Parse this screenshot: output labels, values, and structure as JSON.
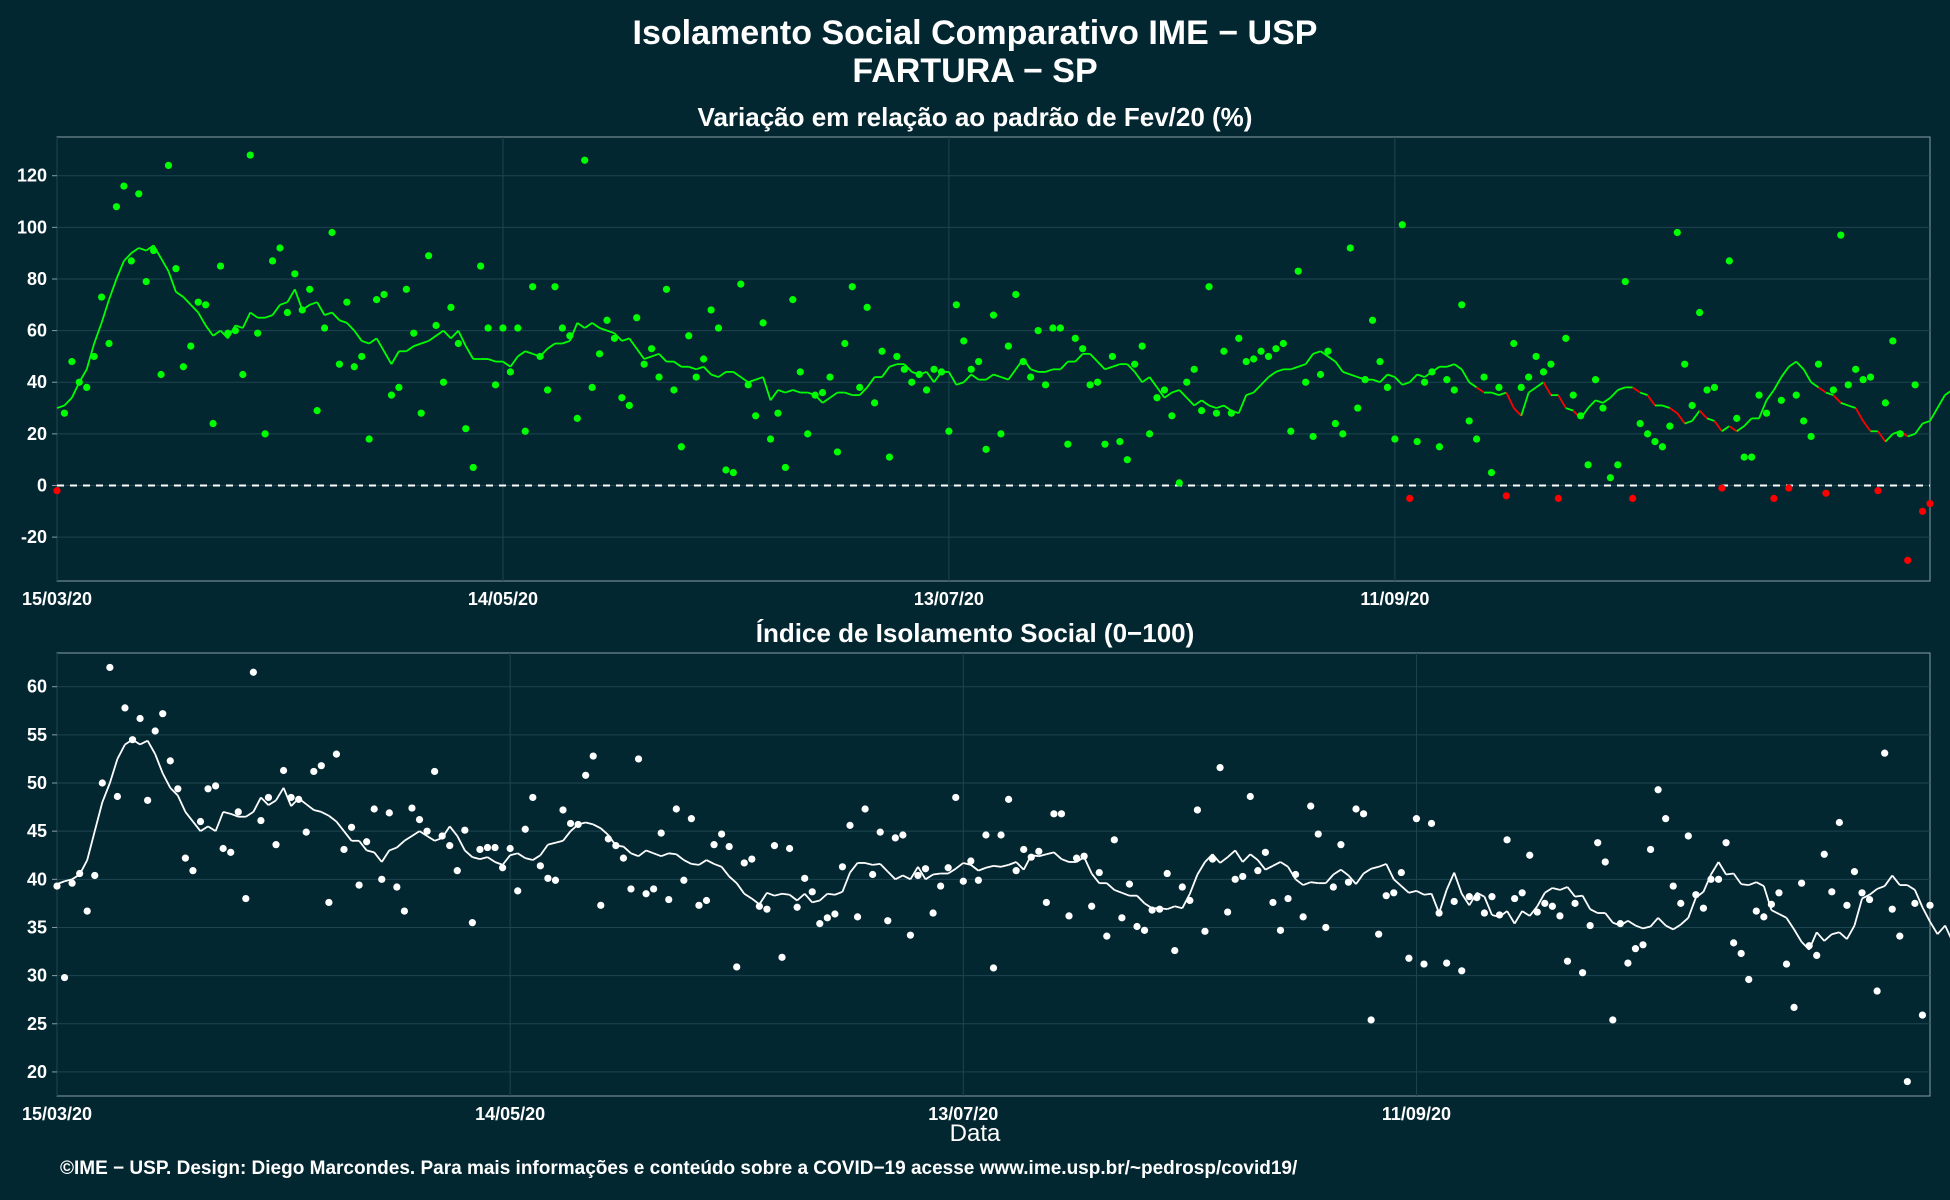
{
  "title": "Isolamento Social Comparativo IME − USP",
  "subtitle": "FARTURA − SP",
  "footer": "©IME − USP. Design: Diego Marcondes. Para mais informações e conteúdo sobre a COVID−19 acesse www.ime.usp.br/~pedrosp/covid19/",
  "colors": {
    "background": "#032731",
    "positive": "#00ff00",
    "negative": "#ff0000",
    "index": "#ffffff"
  },
  "chart_data": [
    {
      "type": "scatter",
      "title": "Variação em relação ao padrão de Fev/20 (%)",
      "xlabel": "",
      "ylabel": "",
      "x_start": "15/03/20",
      "x_end": "24/11/20",
      "xticks": [
        "15/03/20",
        "14/05/20",
        "13/07/20",
        "11/09/20"
      ],
      "yticks": [
        -20,
        0,
        20,
        40,
        60,
        80,
        100,
        120
      ],
      "ylim": [
        -37,
        135
      ],
      "reference_line": 0,
      "grid": true,
      "series": [
        {
          "values": [
            -2,
            28,
            48,
            40,
            38,
            50,
            73,
            55,
            108,
            116,
            87,
            113,
            79,
            91,
            43,
            124,
            84,
            46,
            54,
            71,
            70,
            24,
            85,
            59,
            60,
            43,
            128,
            59,
            20,
            87,
            92,
            67,
            82,
            68,
            76,
            29,
            61,
            98,
            47,
            71,
            46,
            50,
            18,
            72,
            74,
            35,
            38,
            76,
            59,
            28,
            89,
            62,
            40,
            69,
            55,
            22,
            7,
            85,
            61,
            39,
            61,
            44,
            61,
            21,
            77,
            50,
            37,
            77,
            61,
            58,
            26,
            126,
            38,
            51,
            64,
            57,
            34,
            31,
            65,
            47,
            53,
            42,
            76,
            37,
            15,
            58,
            42,
            49,
            68,
            61,
            6,
            5,
            78,
            39,
            27,
            63,
            18,
            28,
            7,
            72,
            44,
            20,
            35,
            36,
            42,
            13,
            55,
            77,
            38,
            69,
            32,
            52,
            11,
            50,
            45,
            40,
            43,
            37,
            45,
            44,
            21,
            70,
            56,
            45,
            48,
            14,
            66,
            20,
            54,
            74,
            48,
            42,
            60,
            39,
            61,
            61,
            16,
            57,
            53,
            39,
            40,
            16,
            50,
            17,
            10,
            47,
            54,
            20,
            34,
            37,
            27,
            1,
            40,
            45,
            29,
            77,
            28,
            52,
            28,
            57,
            48,
            49,
            52,
            50,
            53,
            55,
            21,
            83,
            40,
            19,
            43,
            52,
            24,
            20,
            92,
            30,
            41,
            64,
            48,
            38,
            18,
            101,
            -5,
            17,
            40,
            44,
            15,
            41,
            37,
            70,
            25,
            18,
            42,
            5,
            38,
            -4,
            55,
            38,
            42,
            50,
            44,
            47,
            -5,
            57,
            35,
            27,
            8,
            41,
            30,
            3,
            8,
            79,
            -5,
            24,
            20,
            17,
            15,
            23,
            98,
            47,
            31,
            67,
            37,
            38,
            -1,
            87,
            26,
            11,
            11,
            35,
            28,
            -5,
            33,
            -1,
            35,
            25,
            19,
            47,
            -3,
            37,
            97,
            39,
            45,
            41,
            42,
            -2,
            32,
            56,
            20,
            -29,
            39,
            -10,
            -7
          ]
        },
        {
          "values": [
            30,
            31,
            34,
            40,
            45,
            55,
            63,
            72,
            80,
            87,
            90,
            92,
            91,
            93,
            88,
            83,
            75,
            73,
            70,
            67,
            62,
            58,
            60,
            57,
            62,
            61,
            67,
            65,
            65,
            66,
            70,
            71,
            76,
            68,
            70,
            71,
            66,
            67,
            64,
            63,
            60,
            56,
            55,
            57,
            52,
            47,
            52,
            52,
            54,
            55,
            56,
            58,
            60,
            57,
            60,
            54,
            49,
            49,
            49,
            48,
            48,
            46,
            50,
            52,
            51,
            50,
            53,
            55,
            55,
            56,
            63,
            61,
            63,
            61,
            60,
            59,
            56,
            57,
            53,
            49,
            50,
            51,
            48,
            48,
            46,
            46,
            45,
            46,
            43,
            42,
            44,
            44,
            42,
            40,
            41,
            42,
            33,
            37,
            36,
            37,
            36,
            36,
            35,
            32,
            34,
            36,
            36,
            35,
            35,
            38,
            42,
            42,
            46,
            47,
            47,
            44,
            43,
            44,
            40,
            44,
            44,
            39,
            40,
            43,
            41,
            41,
            43,
            42,
            41,
            45,
            49,
            45,
            44,
            44,
            45,
            45,
            48,
            48,
            51,
            51,
            48,
            45,
            46,
            47,
            47,
            44,
            40,
            42,
            38,
            34,
            36,
            37,
            34,
            31,
            33,
            31,
            30,
            31,
            29,
            28,
            35,
            36,
            39,
            42,
            44,
            45,
            45,
            46,
            47,
            51,
            52,
            50,
            48,
            44,
            43,
            42,
            41,
            41,
            40,
            43,
            42,
            39,
            40,
            43,
            42,
            44,
            46,
            46,
            47,
            45,
            40,
            38,
            36,
            36,
            35,
            36,
            30,
            27,
            36,
            38,
            40,
            35,
            35,
            30,
            29,
            26,
            30,
            33,
            32,
            34,
            37,
            38,
            38,
            36,
            35,
            31,
            31,
            30,
            28,
            24,
            25,
            29,
            26,
            25,
            21,
            23,
            21,
            23,
            26,
            26,
            33,
            37,
            42,
            46,
            48,
            45,
            40,
            38,
            36,
            35,
            32,
            31,
            30,
            25,
            21,
            21,
            17,
            20,
            21,
            19,
            20,
            24,
            25,
            30,
            35,
            37,
            37,
            40,
            43,
            40,
            36,
            38,
            34,
            30,
            23,
            22,
            15,
            14
          ]
        }
      ]
    },
    {
      "type": "scatter",
      "title": "Índice de Isolamento Social (0−100)",
      "xlabel": "Data",
      "ylabel": "",
      "x_start": "15/03/20",
      "x_end": "24/11/20",
      "xticks": [
        "15/03/20",
        "14/05/20",
        "13/07/20",
        "11/09/20"
      ],
      "yticks": [
        20,
        25,
        30,
        35,
        40,
        45,
        50,
        55,
        60
      ],
      "ylim": [
        17.5,
        63.5
      ],
      "grid": true,
      "series": [
        {
          "values": [
            39.3,
            29.8,
            39.6,
            40.6,
            36.7,
            40.4,
            50,
            62,
            48.6,
            57.8,
            54.5,
            56.7,
            48.2,
            55.4,
            57.2,
            52.3,
            49.4,
            42.2,
            40.9,
            46,
            49.4,
            49.7,
            43.2,
            42.8,
            47,
            38,
            61.5,
            46.1,
            48.5,
            43.6,
            51.3,
            48.5,
            48.3,
            44.9,
            51.2,
            51.8,
            37.6,
            53,
            43.1,
            45.4,
            39.4,
            43.9,
            47.3,
            40,
            46.9,
            39.2,
            36.7,
            47.4,
            46.2,
            45,
            51.2,
            44.5,
            43.5,
            40.9,
            45.1,
            35.5,
            43.1,
            43.3,
            43.3,
            41.2,
            43.2,
            38.8,
            45.2,
            48.5,
            41.4,
            40.1,
            39.9,
            47.2,
            45.8,
            45.7,
            50.8,
            52.8,
            37.3,
            44.2,
            43.5,
            42.2,
            39,
            52.5,
            38.5,
            39,
            44.8,
            37.9,
            47.3,
            39.9,
            46.3,
            37.3,
            37.8,
            43.6,
            44.7,
            43.4,
            30.9,
            41.7,
            42.1,
            37.2,
            36.9,
            43.5,
            31.9,
            43.2,
            37.1,
            40.1,
            38.7,
            35.4,
            36,
            36.4,
            41.3,
            45.6,
            36.1,
            47.3,
            40.5,
            44.9,
            35.7,
            44.3,
            44.6,
            34.2,
            40.4,
            41.1,
            36.5,
            39.3,
            41.2,
            48.5,
            39.8,
            41.9,
            39.9,
            44.6,
            30.8,
            44.6,
            48.3,
            40.9,
            43.1,
            42.3,
            42.9,
            37.6,
            46.8,
            46.8,
            36.2,
            42.2,
            42.4,
            37.2,
            40.7,
            34.1,
            44.1,
            36,
            39.5,
            35.1,
            34.7,
            36.8,
            36.9,
            40.6,
            32.6,
            39.2,
            37.8,
            47.2,
            34.6,
            42.1,
            51.6,
            36.6,
            40,
            40.3,
            48.6,
            40.9,
            42.8,
            37.6,
            34.7,
            38,
            40.5,
            36.1,
            47.6,
            44.7,
            35,
            39.2,
            43.6,
            39.7,
            47.3,
            46.8,
            25.4,
            34.3,
            38.3,
            38.6,
            40.7,
            31.8,
            46.3,
            31.2,
            45.8,
            36.5,
            31.3,
            37.7,
            30.5,
            38.2,
            38.1,
            36.5,
            38.2,
            36.3,
            44.1,
            38,
            38.6,
            42.5,
            36.6,
            37.5,
            37.2,
            36.2,
            31.5,
            37.5,
            30.3,
            35.2,
            43.8,
            41.8,
            25.4,
            35.4,
            31.3,
            32.8,
            33.2,
            43.1,
            49.3,
            46.3,
            39.3,
            37.5,
            44.5,
            38.4,
            37,
            40,
            40,
            43.8,
            33.4,
            32.3,
            29.6,
            36.7,
            36.1,
            37.4,
            38.6,
            31.2,
            26.7,
            39.6,
            33.1,
            32.1,
            42.6,
            38.7,
            45.9,
            37.3,
            40.8,
            38.6,
            37.9,
            28.4,
            53.1,
            36.9,
            34.1,
            19,
            37.5,
            25.9,
            37.3
          ]
        },
        {
          "values": [
            39.5,
            39.8,
            40,
            40.5,
            42,
            45,
            48,
            50,
            52.5,
            54,
            54.5,
            54,
            54.4,
            53,
            51,
            49.5,
            48.7,
            47,
            46,
            45,
            45.5,
            45,
            47,
            46.8,
            46.5,
            46.5,
            47,
            48.5,
            47.7,
            48.2,
            49.5,
            47.6,
            48.4,
            47.8,
            47.2,
            47,
            46.6,
            46,
            45,
            44,
            44,
            43,
            42.8,
            41.8,
            43,
            43.3,
            44,
            44.5,
            45,
            44.5,
            44,
            44.3,
            45.5,
            44.5,
            43,
            42.3,
            42.1,
            42.3,
            41.8,
            41.5,
            42.5,
            42.7,
            42.2,
            42,
            42.5,
            43.6,
            43.8,
            44,
            45,
            45.7,
            45.9,
            45.7,
            45.3,
            44.6,
            43.5,
            43.4,
            42.7,
            42.4,
            43,
            42.7,
            42.4,
            42.7,
            42.6,
            42,
            41.6,
            41.5,
            42,
            41.6,
            41.3,
            40.3,
            39.6,
            38.5,
            38,
            37.4,
            38.6,
            38.3,
            38.5,
            38.4,
            37.8,
            38.5,
            37.6,
            37.8,
            38.5,
            38.4,
            38.7,
            40.7,
            41.7,
            41.7,
            41.5,
            41.6,
            40.8,
            40,
            40.4,
            40,
            41.3,
            40,
            40.5,
            40.6,
            40.6,
            41.1,
            41.7,
            41.5,
            40.9,
            41.2,
            41.4,
            41.3,
            41.5,
            41.8,
            41,
            42.5,
            42.4,
            42.6,
            42.8,
            42.1,
            41.8,
            41.8,
            42.3,
            40.6,
            39.6,
            39.6,
            38.9,
            38.6,
            38.3,
            38.3,
            37.5,
            37,
            37,
            36.9,
            37.2,
            37,
            38.5,
            40.5,
            41.8,
            42.6,
            41.7,
            42.3,
            43,
            41.8,
            42.6,
            42,
            41,
            41.4,
            41.8,
            41.3,
            40,
            39.4,
            39.7,
            39.6,
            39.6,
            40.5,
            41,
            40.4,
            39.5,
            40.6,
            41.1,
            41.3,
            41.6,
            40,
            39.3,
            38.6,
            38.8,
            38.4,
            38.5,
            36.5,
            38.9,
            40.7,
            38.5,
            37.3,
            38.6,
            38.2,
            36.3,
            36.1,
            36.7,
            35.4,
            36.7,
            36.2,
            37.2,
            38.6,
            39.1,
            38.9,
            39.2,
            38.2,
            38.3,
            36.9,
            36.5,
            36.5,
            35.5,
            35.2,
            35.7,
            35.2,
            34.9,
            35.1,
            36,
            35.2,
            34.8,
            35.3,
            36,
            38.1,
            38.7,
            40.5,
            41.8,
            40.5,
            40.6,
            39.5,
            39.4,
            39.7,
            39.3,
            36.8,
            36.4,
            36,
            34.8,
            33.5,
            32.7,
            34.5,
            33.6,
            34.3,
            34.5,
            33.8,
            35.2,
            38,
            38.4,
            39,
            39.3,
            40.4,
            39.4,
            39.4,
            38.9,
            37.1,
            35.6,
            34.3,
            35.2,
            33.5,
            35,
            27.1,
            25.6,
            27.4
          ]
        }
      ]
    }
  ]
}
